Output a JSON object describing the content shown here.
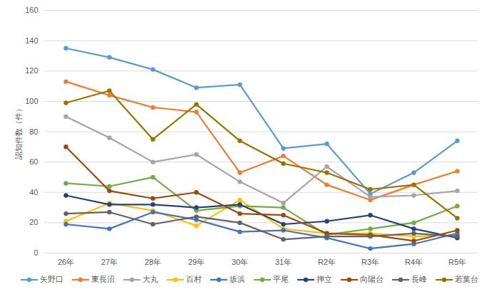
{
  "chart_data": {
    "type": "line",
    "y_label": "認知件数（件）",
    "categories": [
      "26年",
      "27年",
      "28年",
      "29年",
      "30年",
      "31年",
      "R2年",
      "R3年",
      "R4年",
      "R5年"
    ],
    "ylim": [
      0,
      160
    ],
    "yticks": [
      0,
      20,
      40,
      60,
      80,
      100,
      120,
      140,
      160
    ],
    "grid": true,
    "legend": "bottom",
    "marker": "circle",
    "series": [
      {
        "name": "矢野口",
        "color": "#5B9BD5",
        "values": [
          135,
          129,
          121,
          109,
          111,
          69,
          72,
          39,
          53,
          74
        ]
      },
      {
        "name": "東長沼",
        "color": "#ED7D31",
        "values": [
          113,
          104,
          96,
          93,
          53,
          64,
          45,
          35,
          45,
          54
        ]
      },
      {
        "name": "大丸",
        "color": "#A5A5A5",
        "values": [
          90,
          76,
          60,
          65,
          47,
          33,
          57,
          37,
          38,
          41
        ]
      },
      {
        "name": "百村",
        "color": "#FFC000",
        "values": [
          21,
          33,
          28,
          18,
          35,
          16,
          13,
          13,
          11,
          12
        ]
      },
      {
        "name": "坂浜",
        "color": "#4472C4",
        "values": [
          19,
          16,
          27,
          22,
          14,
          15,
          10,
          3,
          6,
          13
        ]
      },
      {
        "name": "平尾",
        "color": "#70AD47",
        "values": [
          46,
          44,
          50,
          28,
          31,
          30,
          12,
          16,
          20,
          31
        ]
      },
      {
        "name": "押立",
        "color": "#264478",
        "values": [
          38,
          32,
          32,
          30,
          32,
          19,
          21,
          25,
          16,
          10
        ]
      },
      {
        "name": "向陽台",
        "color": "#9E480E",
        "values": [
          70,
          41,
          36,
          40,
          26,
          25,
          13,
          12,
          8,
          15
        ]
      },
      {
        "name": "長峰",
        "color": "#636363",
        "values": [
          26,
          27,
          19,
          24,
          20,
          9,
          11,
          11,
          13,
          11
        ]
      },
      {
        "name": "若葉台",
        "color": "#997300",
        "values": [
          99,
          107,
          75,
          98,
          74,
          59,
          53,
          42,
          45,
          23
        ]
      }
    ]
  }
}
